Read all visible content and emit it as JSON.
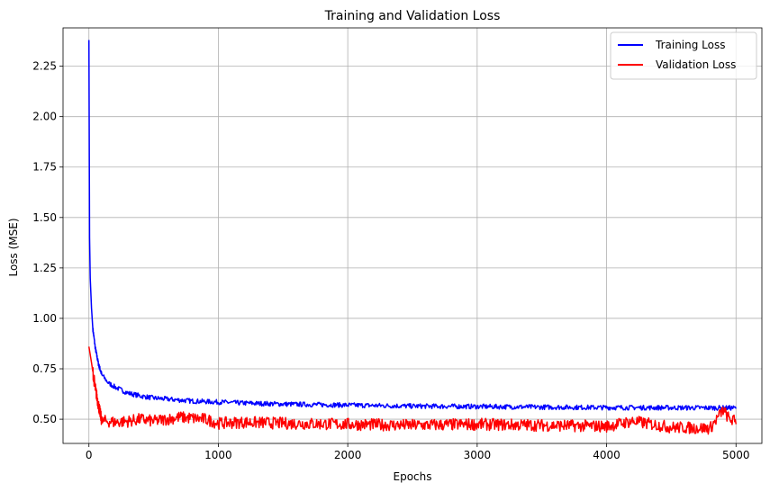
{
  "chart_data": {
    "type": "line",
    "title": "Training and Validation Loss",
    "xlabel": "Epochs",
    "ylabel": "Loss (MSE)",
    "xlim": [
      -200,
      5200
    ],
    "ylim": [
      0.38,
      2.44
    ],
    "xticks": [
      0,
      1000,
      2000,
      3000,
      4000,
      5000
    ],
    "xtick_labels": [
      "0",
      "1000",
      "2000",
      "3000",
      "4000",
      "5000"
    ],
    "yticks": [
      0.5,
      0.75,
      1.0,
      1.25,
      1.5,
      1.75,
      2.0,
      2.25
    ],
    "ytick_labels": [
      "0.50",
      "0.75",
      "1.00",
      "1.25",
      "1.50",
      "1.75",
      "2.00",
      "2.25"
    ],
    "grid": true,
    "legend_position": "top-right",
    "series": [
      {
        "name": "Training Loss",
        "color": "#0000ff",
        "x": [
          0,
          5,
          10,
          20,
          30,
          50,
          75,
          100,
          150,
          200,
          300,
          400,
          500,
          600,
          800,
          1000,
          1200,
          1500,
          2000,
          2500,
          3000,
          3500,
          4000,
          4500,
          5000
        ],
        "values": [
          2.38,
          1.4,
          1.2,
          1.05,
          0.95,
          0.85,
          0.77,
          0.72,
          0.68,
          0.66,
          0.63,
          0.615,
          0.605,
          0.6,
          0.59,
          0.585,
          0.58,
          0.575,
          0.57,
          0.565,
          0.563,
          0.56,
          0.558,
          0.557,
          0.556
        ]
      },
      {
        "name": "Validation Loss",
        "color": "#ff0000",
        "x": [
          0,
          20,
          50,
          80,
          100,
          150,
          200,
          300,
          400,
          500,
          700,
          800,
          900,
          1000,
          1200,
          1500,
          2000,
          2500,
          3000,
          3500,
          4000,
          4200,
          4500,
          4800,
          4850,
          4900,
          4950,
          5000
        ],
        "values": [
          0.86,
          0.78,
          0.65,
          0.55,
          0.49,
          0.49,
          0.485,
          0.49,
          0.5,
          0.49,
          0.51,
          0.505,
          0.5,
          0.48,
          0.485,
          0.48,
          0.475,
          0.47,
          0.475,
          0.47,
          0.465,
          0.49,
          0.46,
          0.455,
          0.5,
          0.545,
          0.5,
          0.49
        ]
      }
    ]
  }
}
